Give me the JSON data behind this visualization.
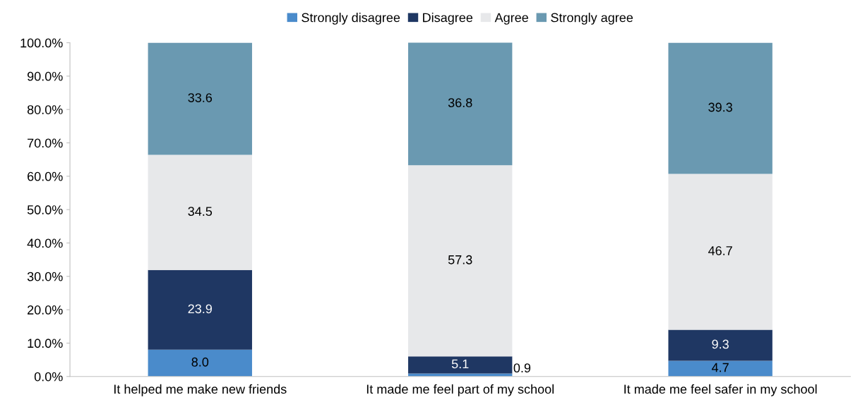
{
  "chart_data": {
    "type": "bar",
    "stacked": true,
    "categories": [
      "It helped me make new friends",
      "It made me feel part of my school",
      "It made me feel safer in my school"
    ],
    "series": [
      {
        "name": "Strongly disagree",
        "color": "#4a8bcb",
        "values": [
          8.0,
          0.9,
          4.7
        ],
        "value_labels": [
          "8.0",
          "0.9",
          "4.7"
        ]
      },
      {
        "name": "Disagree",
        "color": "#1f3763",
        "values": [
          23.9,
          5.1,
          9.3
        ],
        "value_labels": [
          "23.9",
          "5.1",
          "9.3"
        ]
      },
      {
        "name": "Agree",
        "color": "#e7e8ea",
        "values": [
          34.5,
          57.3,
          46.7
        ],
        "value_labels": [
          "34.5",
          "57.3",
          "46.7"
        ]
      },
      {
        "name": "Strongly agree",
        "color": "#6a99b1",
        "values": [
          33.6,
          36.8,
          39.3
        ],
        "value_labels": [
          "33.6",
          "36.8",
          "39.3"
        ]
      }
    ],
    "ylim": [
      0,
      100
    ],
    "yticks": [
      {
        "value": 0,
        "label": "0.0%"
      },
      {
        "value": 10,
        "label": "10.0%"
      },
      {
        "value": 20,
        "label": "20.0%"
      },
      {
        "value": 30,
        "label": "30.0%"
      },
      {
        "value": 40,
        "label": "40.0%"
      },
      {
        "value": 50,
        "label": "50.0%"
      },
      {
        "value": 60,
        "label": "60.0%"
      },
      {
        "value": 70,
        "label": "70.0%"
      },
      {
        "value": 80,
        "label": "80.0%"
      },
      {
        "value": 90,
        "label": "90.0%"
      },
      {
        "value": 100,
        "label": "100.0%"
      }
    ],
    "grid": false,
    "legend": "top"
  }
}
